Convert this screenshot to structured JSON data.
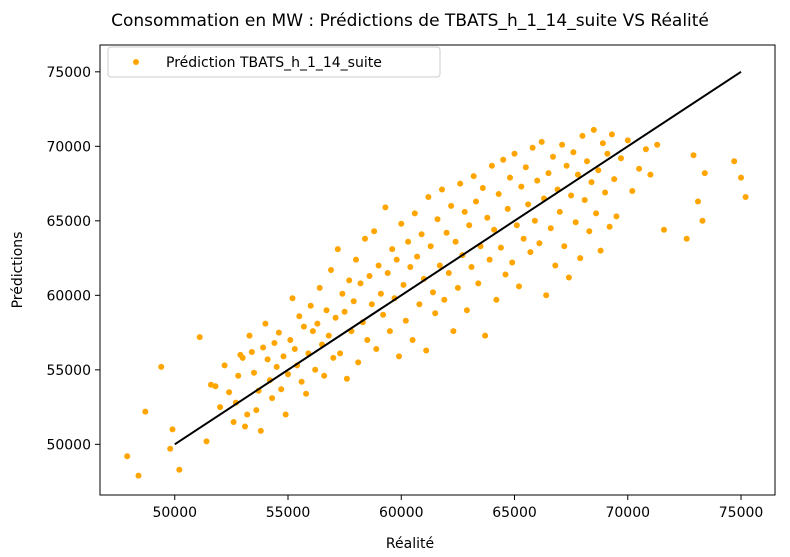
{
  "chart_data": {
    "type": "scatter",
    "title": "Consommation en MW : Prédictions de TBATS_h_1_14_suite VS Réalité",
    "xlabel": "Réalité",
    "ylabel": "Prédictions",
    "xlim": [
      46700,
      76500
    ],
    "ylim": [
      46600,
      76800
    ],
    "xticks": [
      "50000",
      "55000",
      "60000",
      "65000",
      "70000",
      "75000"
    ],
    "yticks": [
      "50000",
      "55000",
      "60000",
      "65000",
      "70000",
      "75000"
    ],
    "grid": false,
    "legend": {
      "position": "top-left",
      "label": "Prédiction TBATS_h_1_14_suite"
    },
    "colors": {
      "points": "#ffa500",
      "line": "#000000"
    },
    "reference_line": {
      "x": [
        50000,
        75000
      ],
      "y": [
        50000,
        75000
      ]
    },
    "series": [
      {
        "name": "Prédiction TBATS_h_1_14_suite",
        "points": [
          [
            47900,
            49200
          ],
          [
            48400,
            47900
          ],
          [
            48700,
            52200
          ],
          [
            49400,
            55200
          ],
          [
            49900,
            51000
          ],
          [
            49800,
            49700
          ],
          [
            50200,
            48300
          ],
          [
            51100,
            57200
          ],
          [
            51400,
            50200
          ],
          [
            51600,
            54000
          ],
          [
            51800,
            53900
          ],
          [
            52000,
            52500
          ],
          [
            52200,
            55300
          ],
          [
            52400,
            53500
          ],
          [
            52600,
            51500
          ],
          [
            52800,
            54600
          ],
          [
            52900,
            56000
          ],
          [
            52700,
            52800
          ],
          [
            53000,
            55800
          ],
          [
            53100,
            51200
          ],
          [
            53200,
            52000
          ],
          [
            53300,
            57300
          ],
          [
            53400,
            56200
          ],
          [
            53500,
            54800
          ],
          [
            53600,
            52300
          ],
          [
            53700,
            53600
          ],
          [
            53800,
            50900
          ],
          [
            53900,
            56500
          ],
          [
            54000,
            58100
          ],
          [
            54100,
            55700
          ],
          [
            54200,
            54300
          ],
          [
            54300,
            53100
          ],
          [
            54400,
            56800
          ],
          [
            54500,
            55200
          ],
          [
            54600,
            57500
          ],
          [
            54700,
            53700
          ],
          [
            54800,
            55900
          ],
          [
            54900,
            52000
          ],
          [
            55000,
            54700
          ],
          [
            55100,
            57000
          ],
          [
            55200,
            59800
          ],
          [
            55300,
            56400
          ],
          [
            55400,
            55300
          ],
          [
            55500,
            58600
          ],
          [
            55600,
            54200
          ],
          [
            55700,
            57900
          ],
          [
            55800,
            53400
          ],
          [
            55900,
            56100
          ],
          [
            56000,
            59300
          ],
          [
            56100,
            57600
          ],
          [
            56200,
            55000
          ],
          [
            56300,
            58100
          ],
          [
            56400,
            60500
          ],
          [
            56500,
            56700
          ],
          [
            56600,
            54600
          ],
          [
            56700,
            59000
          ],
          [
            56800,
            57300
          ],
          [
            56900,
            61700
          ],
          [
            57000,
            55800
          ],
          [
            57100,
            58500
          ],
          [
            57200,
            63100
          ],
          [
            57300,
            56100
          ],
          [
            57400,
            60100
          ],
          [
            57500,
            58900
          ],
          [
            57600,
            54400
          ],
          [
            57700,
            61000
          ],
          [
            57800,
            57600
          ],
          [
            57900,
            59600
          ],
          [
            58000,
            62400
          ],
          [
            58100,
            55500
          ],
          [
            58200,
            60800
          ],
          [
            58300,
            58200
          ],
          [
            58400,
            63800
          ],
          [
            58500,
            57000
          ],
          [
            58600,
            61300
          ],
          [
            58700,
            59400
          ],
          [
            58800,
            64300
          ],
          [
            58900,
            56400
          ],
          [
            59000,
            62000
          ],
          [
            59100,
            60100
          ],
          [
            59200,
            58700
          ],
          [
            59300,
            65900
          ],
          [
            59400,
            61500
          ],
          [
            59500,
            57600
          ],
          [
            59600,
            63100
          ],
          [
            59700,
            59800
          ],
          [
            59800,
            62400
          ],
          [
            59900,
            55900
          ],
          [
            60000,
            64800
          ],
          [
            60100,
            60700
          ],
          [
            60200,
            58300
          ],
          [
            60300,
            63600
          ],
          [
            60400,
            61900
          ],
          [
            60500,
            57000
          ],
          [
            60600,
            65500
          ],
          [
            60700,
            62600
          ],
          [
            60800,
            59400
          ],
          [
            60900,
            64100
          ],
          [
            61000,
            61100
          ],
          [
            61100,
            56300
          ],
          [
            61200,
            66600
          ],
          [
            61300,
            63300
          ],
          [
            61400,
            60200
          ],
          [
            61500,
            58800
          ],
          [
            61600,
            65100
          ],
          [
            61700,
            62000
          ],
          [
            61800,
            67100
          ],
          [
            61900,
            59700
          ],
          [
            62000,
            64200
          ],
          [
            62100,
            61500
          ],
          [
            62200,
            66000
          ],
          [
            62300,
            57600
          ],
          [
            62400,
            63600
          ],
          [
            62500,
            60500
          ],
          [
            62600,
            67500
          ],
          [
            62700,
            62700
          ],
          [
            62800,
            65600
          ],
          [
            62900,
            59000
          ],
          [
            63000,
            64700
          ],
          [
            63100,
            61900
          ],
          [
            63200,
            68000
          ],
          [
            63300,
            66300
          ],
          [
            63400,
            60800
          ],
          [
            63500,
            63300
          ],
          [
            63600,
            67200
          ],
          [
            63700,
            57300
          ],
          [
            63800,
            65200
          ],
          [
            63900,
            62400
          ],
          [
            64000,
            68700
          ],
          [
            64100,
            64400
          ],
          [
            64200,
            59700
          ],
          [
            64300,
            66800
          ],
          [
            64400,
            63200
          ],
          [
            64500,
            69100
          ],
          [
            64600,
            61400
          ],
          [
            64700,
            65800
          ],
          [
            64800,
            67900
          ],
          [
            64900,
            62200
          ],
          [
            65000,
            69500
          ],
          [
            65100,
            64700
          ],
          [
            65200,
            60600
          ],
          [
            65300,
            67300
          ],
          [
            65400,
            63800
          ],
          [
            65500,
            68600
          ],
          [
            65600,
            66100
          ],
          [
            65700,
            62900
          ],
          [
            65800,
            69900
          ],
          [
            65900,
            65000
          ],
          [
            66000,
            67700
          ],
          [
            66100,
            63500
          ],
          [
            66200,
            70300
          ],
          [
            66300,
            66500
          ],
          [
            66400,
            60000
          ],
          [
            66500,
            68200
          ],
          [
            66600,
            64500
          ],
          [
            66700,
            69300
          ],
          [
            66800,
            62000
          ],
          [
            66900,
            67100
          ],
          [
            67000,
            65600
          ],
          [
            67100,
            70100
          ],
          [
            67200,
            63300
          ],
          [
            67300,
            68700
          ],
          [
            67400,
            61200
          ],
          [
            67500,
            66700
          ],
          [
            67600,
            69600
          ],
          [
            67700,
            64900
          ],
          [
            67800,
            68100
          ],
          [
            67900,
            62500
          ],
          [
            68000,
            70700
          ],
          [
            68100,
            66400
          ],
          [
            68200,
            69000
          ],
          [
            68300,
            64300
          ],
          [
            68400,
            67600
          ],
          [
            68500,
            71100
          ],
          [
            68600,
            65500
          ],
          [
            68700,
            68400
          ],
          [
            68800,
            63000
          ],
          [
            68900,
            70200
          ],
          [
            69000,
            66900
          ],
          [
            69100,
            69500
          ],
          [
            69200,
            64600
          ],
          [
            69300,
            70800
          ],
          [
            69400,
            67800
          ],
          [
            69500,
            65300
          ],
          [
            69700,
            69200
          ],
          [
            70000,
            70400
          ],
          [
            70200,
            67000
          ],
          [
            70500,
            68500
          ],
          [
            70800,
            69800
          ],
          [
            71000,
            68100
          ],
          [
            71300,
            70100
          ],
          [
            71600,
            64400
          ],
          [
            72600,
            63800
          ],
          [
            72900,
            69400
          ],
          [
            73100,
            66300
          ],
          [
            73300,
            65000
          ],
          [
            73400,
            68200
          ],
          [
            74700,
            69000
          ],
          [
            75000,
            67900
          ],
          [
            75200,
            66600
          ]
        ]
      }
    ]
  }
}
